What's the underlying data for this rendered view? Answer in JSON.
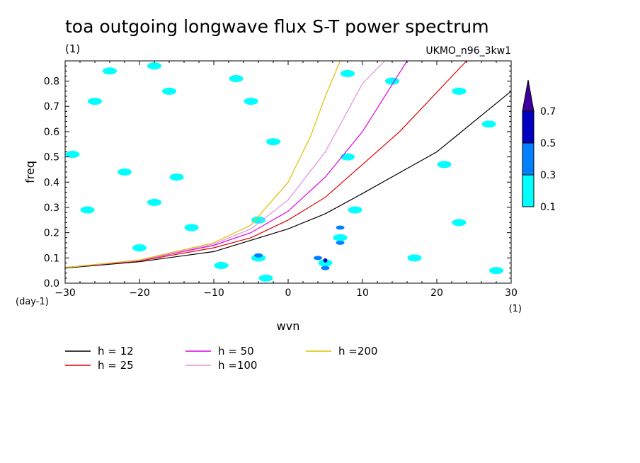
{
  "chart_data": {
    "type": "contour",
    "title": "toa outgoing longwave flux S-T power spectrum",
    "units_label": "(1)",
    "model_label": "UKMO_n96_3kw1",
    "xlabel": "wvn",
    "x_units": "(1)",
    "ylabel": "freq",
    "y_units": "(day-1)",
    "xlim": [
      -30,
      30
    ],
    "ylim": [
      0,
      0.88
    ],
    "x_ticks": [
      -30,
      -20,
      -10,
      0,
      10,
      20,
      30
    ],
    "x_tick_labels": [
      "-30",
      "-20",
      "-10",
      "0",
      "10",
      "20",
      "30"
    ],
    "y_ticks": [
      0.0,
      0.1,
      0.2,
      0.3,
      0.4,
      0.5,
      0.6,
      0.7,
      0.8
    ],
    "y_tick_labels": [
      "0.0",
      "0.1",
      "0.2",
      "0.3",
      "0.4",
      "0.5",
      "0.6",
      "0.7",
      "0.8"
    ],
    "colorbar": {
      "levels": [
        0.1,
        0.3,
        0.5,
        0.7
      ],
      "level_labels": [
        "0.1",
        "0.3",
        "0.5",
        "0.7"
      ],
      "colors": [
        "#00ffff",
        "#0080ff",
        "#0000c0",
        "#4000a0"
      ]
    },
    "series": [
      {
        "name": "h = 12",
        "color": "#000000",
        "x": [
          -30,
          -20,
          -10,
          0,
          5,
          10,
          20,
          30
        ],
        "y": [
          0.06,
          0.085,
          0.125,
          0.215,
          0.275,
          0.355,
          0.52,
          0.76
        ]
      },
      {
        "name": "h = 25",
        "color": "#e00000",
        "x": [
          -30,
          -20,
          -10,
          -5,
          0,
          5,
          10,
          15,
          24
        ],
        "y": [
          0.062,
          0.088,
          0.14,
          0.18,
          0.25,
          0.34,
          0.47,
          0.6,
          0.88
        ]
      },
      {
        "name": "h = 50",
        "color": "#e000e0",
        "x": [
          -30,
          -20,
          -10,
          -5,
          0,
          5,
          10,
          16
        ],
        "y": [
          0.062,
          0.09,
          0.15,
          0.2,
          0.285,
          0.42,
          0.6,
          0.88
        ]
      },
      {
        "name": "h =100",
        "color": "#e090e0",
        "x": [
          -30,
          -20,
          -10,
          -5,
          0,
          5,
          10,
          13
        ],
        "y": [
          0.062,
          0.09,
          0.155,
          0.215,
          0.33,
          0.52,
          0.79,
          0.88
        ]
      },
      {
        "name": "h =200",
        "color": "#e0c000",
        "x": [
          -30,
          -20,
          -10,
          -5,
          0,
          3,
          5,
          7
        ],
        "y": [
          0.062,
          0.092,
          0.16,
          0.23,
          0.4,
          0.58,
          0.74,
          0.88
        ]
      }
    ],
    "legend": [
      {
        "label": "h = 12",
        "color": "#000000"
      },
      {
        "label": "h = 25",
        "color": "#e00000"
      },
      {
        "label": "h = 50",
        "color": "#e000e0"
      },
      {
        "label": "h =100",
        "color": "#e090e0"
      },
      {
        "label": "h =200",
        "color": "#e0c000"
      }
    ],
    "contour_patches": [
      {
        "x": -24,
        "y": 0.84,
        "level": 0.1
      },
      {
        "x": -26,
        "y": 0.72,
        "level": 0.1
      },
      {
        "x": -18,
        "y": 0.86,
        "level": 0.1
      },
      {
        "x": -16,
        "y": 0.76,
        "level": 0.1
      },
      {
        "x": -7,
        "y": 0.81,
        "level": 0.1
      },
      {
        "x": -5,
        "y": 0.72,
        "level": 0.1
      },
      {
        "x": 8,
        "y": 0.83,
        "level": 0.1
      },
      {
        "x": 14,
        "y": 0.8,
        "level": 0.1
      },
      {
        "x": 23,
        "y": 0.76,
        "level": 0.1
      },
      {
        "x": 27,
        "y": 0.63,
        "level": 0.1
      },
      {
        "x": -29,
        "y": 0.51,
        "level": 0.1
      },
      {
        "x": -22,
        "y": 0.44,
        "level": 0.1
      },
      {
        "x": -15,
        "y": 0.42,
        "level": 0.1
      },
      {
        "x": -2,
        "y": 0.56,
        "level": 0.1
      },
      {
        "x": 8,
        "y": 0.5,
        "level": 0.1
      },
      {
        "x": 21,
        "y": 0.47,
        "level": 0.1
      },
      {
        "x": -27,
        "y": 0.29,
        "level": 0.1
      },
      {
        "x": -18,
        "y": 0.32,
        "level": 0.1
      },
      {
        "x": -13,
        "y": 0.22,
        "level": 0.1
      },
      {
        "x": -4,
        "y": 0.25,
        "level": 0.1
      },
      {
        "x": 9,
        "y": 0.29,
        "level": 0.1
      },
      {
        "x": 23,
        "y": 0.24,
        "level": 0.1
      },
      {
        "x": -20,
        "y": 0.14,
        "level": 0.1
      },
      {
        "x": -9,
        "y": 0.07,
        "level": 0.1
      },
      {
        "x": -4,
        "y": 0.1,
        "level": 0.1
      },
      {
        "x": 5,
        "y": 0.08,
        "level": 0.1
      },
      {
        "x": 7,
        "y": 0.18,
        "level": 0.1
      },
      {
        "x": 17,
        "y": 0.1,
        "level": 0.1
      },
      {
        "x": 28,
        "y": 0.05,
        "level": 0.1
      },
      {
        "x": -3,
        "y": 0.02,
        "level": 0.1
      },
      {
        "x": -4,
        "y": 0.11,
        "level": 0.3
      },
      {
        "x": 4,
        "y": 0.1,
        "level": 0.3
      },
      {
        "x": 7,
        "y": 0.16,
        "level": 0.3
      },
      {
        "x": 7,
        "y": 0.22,
        "level": 0.3
      },
      {
        "x": 5,
        "y": 0.06,
        "level": 0.3
      },
      {
        "x": 5,
        "y": 0.09,
        "level": 0.5
      }
    ]
  }
}
